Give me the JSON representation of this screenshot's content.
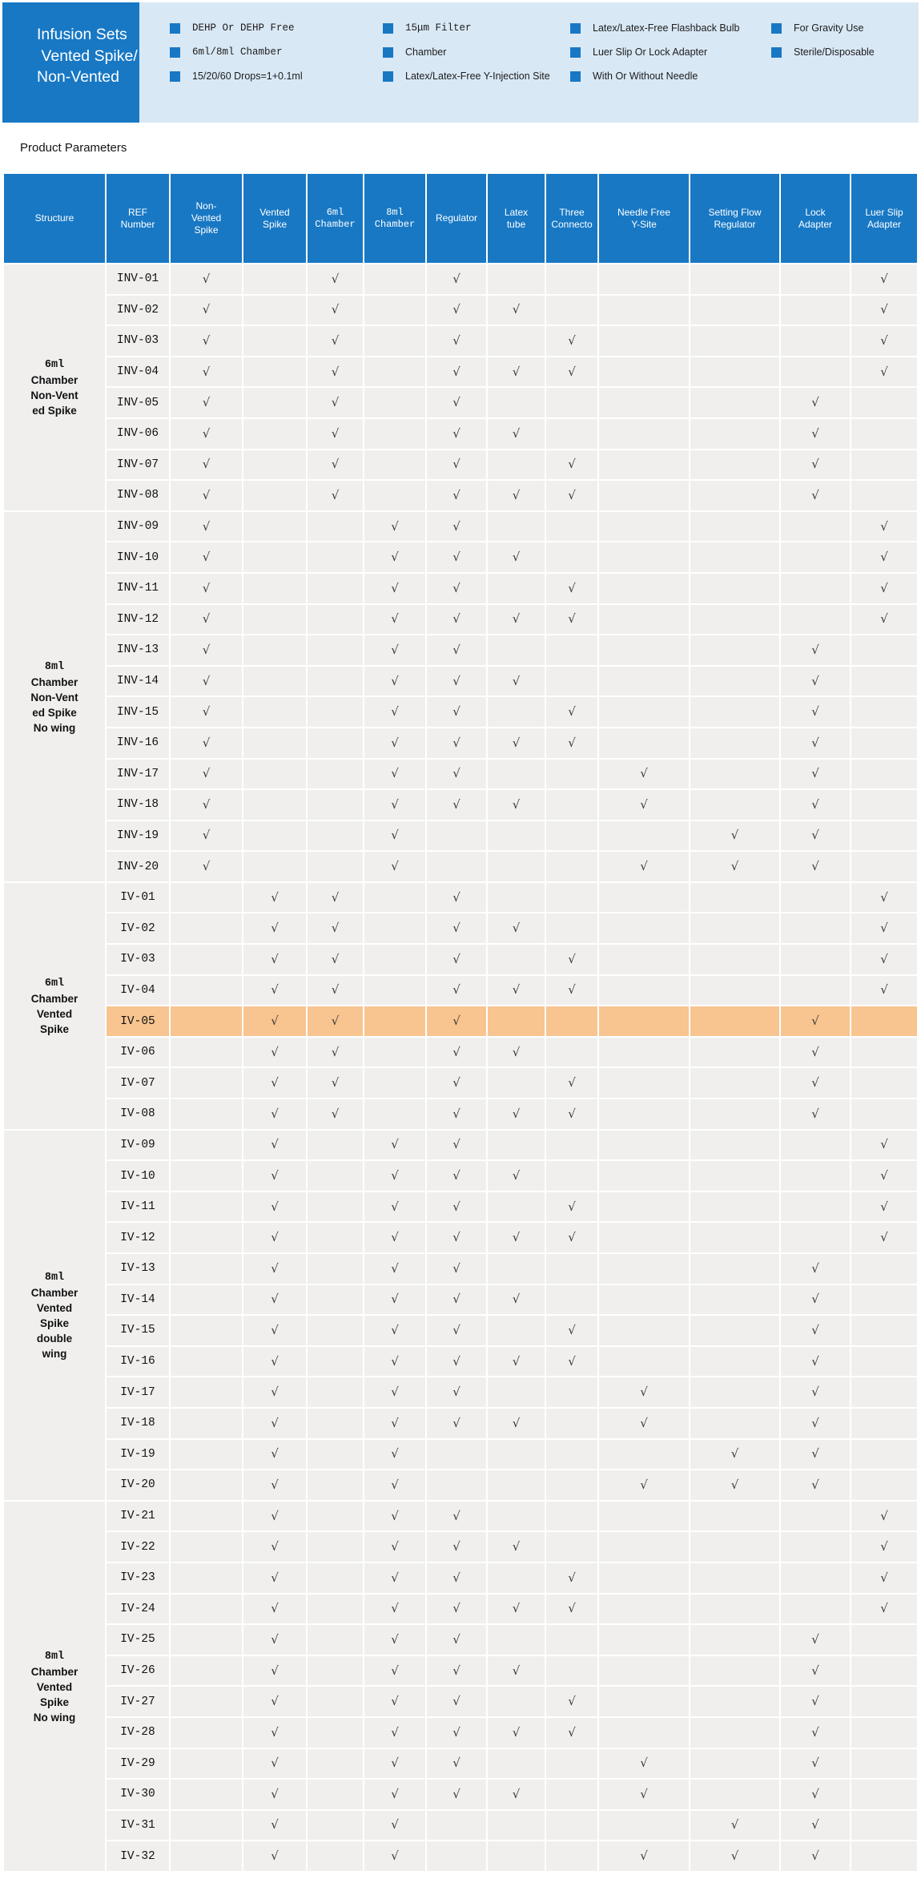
{
  "banner": {
    "title": "Infusion Sets\n Vented Spike/\nNon-Vented",
    "feature_columns": [
      {
        "items": [
          {
            "text": "DEHP Or DEHP Free",
            "mono": true
          },
          {
            "text": "6ml/8ml Chamber",
            "mono": true
          },
          {
            "text": "15/20/60 Drops=1+0.1ml",
            "mono": false
          }
        ]
      },
      {
        "items": [
          {
            "text": "15μm Filter",
            "mono": true
          },
          {
            "text": "Chamber",
            "mono": false
          },
          {
            "text": "Latex/Latex-Free Y-Injection Site",
            "mono": false
          }
        ]
      },
      {
        "items": [
          {
            "text": "Latex/Latex-Free Flashback Bulb",
            "mono": false
          },
          {
            "text": "Luer Slip Or Lock Adapter",
            "mono": false
          },
          {
            "text": "With Or Without Needle",
            "mono": false
          }
        ]
      },
      {
        "items": [
          {
            "text": "For Gravity Use",
            "mono": false
          },
          {
            "text": "Sterile/Disposable",
            "mono": false
          }
        ]
      }
    ]
  },
  "section_title": "Product Parameters",
  "table": {
    "check_glyph": "√",
    "highlight_ref": "IV-05",
    "columns": [
      {
        "id": "structure",
        "label_lines": [
          "Structure"
        ],
        "mono": false
      },
      {
        "id": "ref",
        "label_lines": [
          "REF",
          "Number"
        ],
        "mono": false
      },
      {
        "id": "nv",
        "label_lines": [
          "Non-",
          "Vented",
          "Spike"
        ],
        "mono": false
      },
      {
        "id": "v",
        "label_lines": [
          "Vented",
          "Spike"
        ],
        "mono": false
      },
      {
        "id": "c6",
        "label_lines": [
          "6ml",
          "Chamber"
        ],
        "mono": true
      },
      {
        "id": "c8",
        "label_lines": [
          "8ml",
          "Chamber"
        ],
        "mono": true
      },
      {
        "id": "reg",
        "label_lines": [
          "Regulator"
        ],
        "mono": false
      },
      {
        "id": "latex",
        "label_lines": [
          "Latex",
          "tube"
        ],
        "mono": false
      },
      {
        "id": "three",
        "label_lines": [
          "Three",
          "Connecto"
        ],
        "mono": false
      },
      {
        "id": "nf",
        "label_lines": [
          "Needle Free",
          "Y-Site"
        ],
        "mono": false
      },
      {
        "id": "sf",
        "label_lines": [
          "Setting Flow",
          "Regulator"
        ],
        "mono": false
      },
      {
        "id": "lock",
        "label_lines": [
          "Lock",
          "Adapter"
        ],
        "mono": false
      },
      {
        "id": "luer",
        "label_lines": [
          "Luer Slip",
          "Adapter"
        ],
        "mono": false
      }
    ],
    "groups": [
      {
        "structure_lines": [
          "6ml",
          "Chamber",
          "Non-Vent",
          "ed Spike"
        ],
        "rows": [
          {
            "ref": "INV-01",
            "checks": [
              "nv",
              "c6",
              "reg",
              "luer"
            ]
          },
          {
            "ref": "INV-02",
            "checks": [
              "nv",
              "c6",
              "reg",
              "latex",
              "luer"
            ]
          },
          {
            "ref": "INV-03",
            "checks": [
              "nv",
              "c6",
              "reg",
              "three",
              "luer"
            ]
          },
          {
            "ref": "INV-04",
            "checks": [
              "nv",
              "c6",
              "reg",
              "latex",
              "three",
              "luer"
            ]
          },
          {
            "ref": "INV-05",
            "checks": [
              "nv",
              "c6",
              "reg",
              "lock"
            ]
          },
          {
            "ref": "INV-06",
            "checks": [
              "nv",
              "c6",
              "reg",
              "latex",
              "lock"
            ]
          },
          {
            "ref": "INV-07",
            "checks": [
              "nv",
              "c6",
              "reg",
              "three",
              "lock"
            ]
          },
          {
            "ref": "INV-08",
            "checks": [
              "nv",
              "c6",
              "reg",
              "latex",
              "three",
              "lock"
            ]
          }
        ]
      },
      {
        "structure_lines": [
          "8ml",
          "Chamber",
          "Non-Vent",
          "ed Spike",
          "No wing"
        ],
        "rows": [
          {
            "ref": "INV-09",
            "checks": [
              "nv",
              "c8",
              "reg",
              "luer"
            ]
          },
          {
            "ref": "INV-10",
            "checks": [
              "nv",
              "c8",
              "reg",
              "latex",
              "luer"
            ]
          },
          {
            "ref": "INV-11",
            "checks": [
              "nv",
              "c8",
              "reg",
              "three",
              "luer"
            ]
          },
          {
            "ref": "INV-12",
            "checks": [
              "nv",
              "c8",
              "reg",
              "latex",
              "three",
              "luer"
            ]
          },
          {
            "ref": "INV-13",
            "checks": [
              "nv",
              "c8",
              "reg",
              "lock"
            ]
          },
          {
            "ref": "INV-14",
            "checks": [
              "nv",
              "c8",
              "reg",
              "latex",
              "lock"
            ]
          },
          {
            "ref": "INV-15",
            "checks": [
              "nv",
              "c8",
              "reg",
              "three",
              "lock"
            ]
          },
          {
            "ref": "INV-16",
            "checks": [
              "nv",
              "c8",
              "reg",
              "latex",
              "three",
              "lock"
            ]
          },
          {
            "ref": "INV-17",
            "checks": [
              "nv",
              "c8",
              "reg",
              "nf",
              "lock"
            ]
          },
          {
            "ref": "INV-18",
            "checks": [
              "nv",
              "c8",
              "reg",
              "latex",
              "nf",
              "lock"
            ]
          },
          {
            "ref": "INV-19",
            "checks": [
              "nv",
              "c8",
              "sf",
              "lock"
            ]
          },
          {
            "ref": "INV-20",
            "checks": [
              "nv",
              "c8",
              "nf",
              "sf",
              "lock"
            ]
          }
        ]
      },
      {
        "structure_lines": [
          "6ml",
          "Chamber",
          "Vented",
          "Spike"
        ],
        "rows": [
          {
            "ref": "IV-01",
            "checks": [
              "v",
              "c6",
              "reg",
              "luer"
            ]
          },
          {
            "ref": "IV-02",
            "checks": [
              "v",
              "c6",
              "reg",
              "latex",
              "luer"
            ]
          },
          {
            "ref": "IV-03",
            "checks": [
              "v",
              "c6",
              "reg",
              "three",
              "luer"
            ]
          },
          {
            "ref": "IV-04",
            "checks": [
              "v",
              "c6",
              "reg",
              "latex",
              "three",
              "luer"
            ]
          },
          {
            "ref": "IV-05",
            "checks": [
              "v",
              "c6",
              "reg",
              "lock"
            ]
          },
          {
            "ref": "IV-06",
            "checks": [
              "v",
              "c6",
              "reg",
              "latex",
              "lock"
            ]
          },
          {
            "ref": "IV-07",
            "checks": [
              "v",
              "c6",
              "reg",
              "three",
              "lock"
            ]
          },
          {
            "ref": "IV-08",
            "checks": [
              "v",
              "c6",
              "reg",
              "latex",
              "three",
              "lock"
            ]
          }
        ]
      },
      {
        "structure_lines": [
          "8ml",
          "Chamber",
          "Vented",
          "Spike",
          "double",
          "wing"
        ],
        "rows": [
          {
            "ref": "IV-09",
            "checks": [
              "v",
              "c8",
              "reg",
              "luer"
            ]
          },
          {
            "ref": "IV-10",
            "checks": [
              "v",
              "c8",
              "reg",
              "latex",
              "luer"
            ]
          },
          {
            "ref": "IV-11",
            "checks": [
              "v",
              "c8",
              "reg",
              "three",
              "luer"
            ]
          },
          {
            "ref": "IV-12",
            "checks": [
              "v",
              "c8",
              "reg",
              "latex",
              "three",
              "luer"
            ]
          },
          {
            "ref": "IV-13",
            "checks": [
              "v",
              "c8",
              "reg",
              "lock"
            ]
          },
          {
            "ref": "IV-14",
            "checks": [
              "v",
              "c8",
              "reg",
              "latex",
              "lock"
            ]
          },
          {
            "ref": "IV-15",
            "checks": [
              "v",
              "c8",
              "reg",
              "three",
              "lock"
            ]
          },
          {
            "ref": "IV-16",
            "checks": [
              "v",
              "c8",
              "reg",
              "latex",
              "three",
              "lock"
            ]
          },
          {
            "ref": "IV-17",
            "checks": [
              "v",
              "c8",
              "reg",
              "nf",
              "lock"
            ]
          },
          {
            "ref": "IV-18",
            "checks": [
              "v",
              "c8",
              "reg",
              "latex",
              "nf",
              "lock"
            ]
          },
          {
            "ref": "IV-19",
            "checks": [
              "v",
              "c8",
              "sf",
              "lock"
            ]
          },
          {
            "ref": "IV-20",
            "checks": [
              "v",
              "c8",
              "nf",
              "sf",
              "lock"
            ]
          }
        ]
      },
      {
        "structure_lines": [
          "8ml",
          "Chamber",
          "Vented",
          "Spike",
          "No wing"
        ],
        "rows": [
          {
            "ref": "IV-21",
            "checks": [
              "v",
              "c8",
              "reg",
              "luer"
            ]
          },
          {
            "ref": "IV-22",
            "checks": [
              "v",
              "c8",
              "reg",
              "latex",
              "luer"
            ]
          },
          {
            "ref": "IV-23",
            "checks": [
              "v",
              "c8",
              "reg",
              "three",
              "luer"
            ]
          },
          {
            "ref": "IV-24",
            "checks": [
              "v",
              "c8",
              "reg",
              "latex",
              "three",
              "luer"
            ]
          },
          {
            "ref": "IV-25",
            "checks": [
              "v",
              "c8",
              "reg",
              "lock"
            ]
          },
          {
            "ref": "IV-26",
            "checks": [
              "v",
              "c8",
              "reg",
              "latex",
              "lock"
            ]
          },
          {
            "ref": "IV-27",
            "checks": [
              "v",
              "c8",
              "reg",
              "three",
              "lock"
            ]
          },
          {
            "ref": "IV-28",
            "checks": [
              "v",
              "c8",
              "reg",
              "latex",
              "three",
              "lock"
            ]
          },
          {
            "ref": "IV-29",
            "checks": [
              "v",
              "c8",
              "reg",
              "nf",
              "lock"
            ]
          },
          {
            "ref": "IV-30",
            "checks": [
              "v",
              "c8",
              "reg",
              "latex",
              "nf",
              "lock"
            ]
          },
          {
            "ref": "IV-31",
            "checks": [
              "v",
              "c8",
              "sf",
              "lock"
            ]
          },
          {
            "ref": "IV-32",
            "checks": [
              "v",
              "c8",
              "nf",
              "sf",
              "lock"
            ]
          }
        ]
      }
    ]
  },
  "colors": {
    "brand_blue": "#1878c4",
    "banner_light_blue": "#d9e8f5",
    "row_gray": "#f0efee",
    "highlight_orange": "#f8c48f",
    "check_gray": "#3a3a3a"
  }
}
